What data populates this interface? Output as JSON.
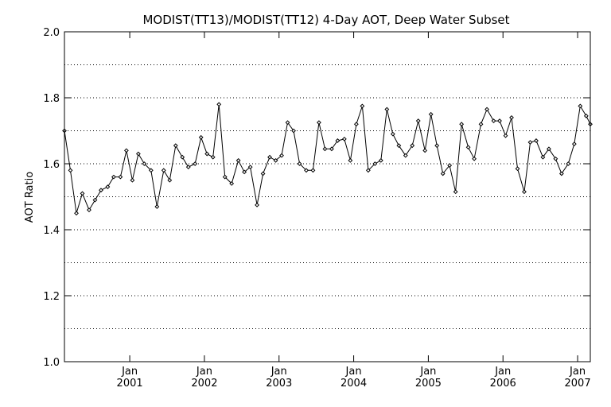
{
  "chart_data": {
    "type": "line",
    "title": "MODIST(TT13)/MODIST(TT12) 4-Day AOT, Deep Water Subset",
    "ylabel": "AOT Ratio",
    "xlabel": "",
    "xlim": [
      2000.125,
      2007.17
    ],
    "ylim": [
      1.0,
      2.0
    ],
    "grid": {
      "y": true,
      "x": false,
      "style": "dotted"
    },
    "y_ticks": [
      {
        "value": 1.0,
        "label": "1.0"
      },
      {
        "value": 1.2,
        "label": "1.2"
      },
      {
        "value": 1.4,
        "label": "1.4"
      },
      {
        "value": 1.6,
        "label": "1.6"
      },
      {
        "value": 1.8,
        "label": "1.8"
      },
      {
        "value": 2.0,
        "label": "2.0"
      }
    ],
    "y_minor_gridlines": [
      1.1,
      1.3,
      1.5,
      1.7,
      1.9
    ],
    "x_ticks": [
      {
        "value": 2001.0,
        "month": "Jan",
        "year": "2001"
      },
      {
        "value": 2002.0,
        "month": "Jan",
        "year": "2002"
      },
      {
        "value": 2003.0,
        "month": "Jan",
        "year": "2003"
      },
      {
        "value": 2004.0,
        "month": "Jan",
        "year": "2004"
      },
      {
        "value": 2005.0,
        "month": "Jan",
        "year": "2005"
      },
      {
        "value": 2006.0,
        "month": "Jan",
        "year": "2006"
      },
      {
        "value": 2007.0,
        "month": "Jan",
        "year": "2007"
      }
    ],
    "series": [
      {
        "marker": "diamond",
        "color": "#000000",
        "x": [
          2000.125,
          2000.205,
          2000.285,
          2000.365,
          2000.455,
          2000.535,
          2000.615,
          2000.705,
          2000.785,
          2000.875,
          2000.955,
          2001.035,
          2001.115,
          2001.195,
          2001.285,
          2001.365,
          2001.455,
          2001.535,
          2001.615,
          2001.705,
          2001.785,
          2001.875,
          2001.955,
          2002.035,
          2002.115,
          2002.195,
          2002.275,
          2002.365,
          2002.455,
          2002.535,
          2002.615,
          2002.705,
          2002.785,
          2002.875,
          2002.955,
          2003.035,
          2003.115,
          2003.195,
          2003.275,
          2003.365,
          2003.455,
          2003.535,
          2003.615,
          2003.705,
          2003.785,
          2003.875,
          2003.955,
          2004.035,
          2004.115,
          2004.195,
          2004.285,
          2004.365,
          2004.445,
          2004.525,
          2004.605,
          2004.695,
          2004.785,
          2004.865,
          2004.955,
          2005.035,
          2005.115,
          2005.195,
          2005.285,
          2005.365,
          2005.445,
          2005.535,
          2005.615,
          2005.705,
          2005.785,
          2005.875,
          2005.955,
          2006.035,
          2006.115,
          2006.195,
          2006.285,
          2006.365,
          2006.445,
          2006.535,
          2006.615,
          2006.705,
          2006.785,
          2006.875,
          2006.955,
          2007.035,
          2007.115,
          2007.17
        ],
        "y": [
          1.7,
          1.58,
          1.45,
          1.51,
          1.46,
          1.49,
          1.52,
          1.53,
          1.56,
          1.56,
          1.64,
          1.55,
          1.63,
          1.6,
          1.58,
          1.47,
          1.58,
          1.55,
          1.655,
          1.62,
          1.59,
          1.6,
          1.68,
          1.63,
          1.62,
          1.78,
          1.56,
          1.54,
          1.61,
          1.575,
          1.59,
          1.475,
          1.57,
          1.62,
          1.61,
          1.625,
          1.725,
          1.7,
          1.6,
          1.58,
          1.58,
          1.725,
          1.645,
          1.645,
          1.67,
          1.675,
          1.61,
          1.72,
          1.775,
          1.58,
          1.6,
          1.61,
          1.765,
          1.69,
          1.655,
          1.625,
          1.655,
          1.73,
          1.64,
          1.75,
          1.655,
          1.57,
          1.595,
          1.515,
          1.72,
          1.65,
          1.615,
          1.72,
          1.765,
          1.73,
          1.73,
          1.685,
          1.74,
          1.585,
          1.515,
          1.665,
          1.67,
          1.62,
          1.645,
          1.615,
          1.57,
          1.6,
          1.66,
          1.775,
          1.745,
          1.72
        ]
      }
    ]
  }
}
